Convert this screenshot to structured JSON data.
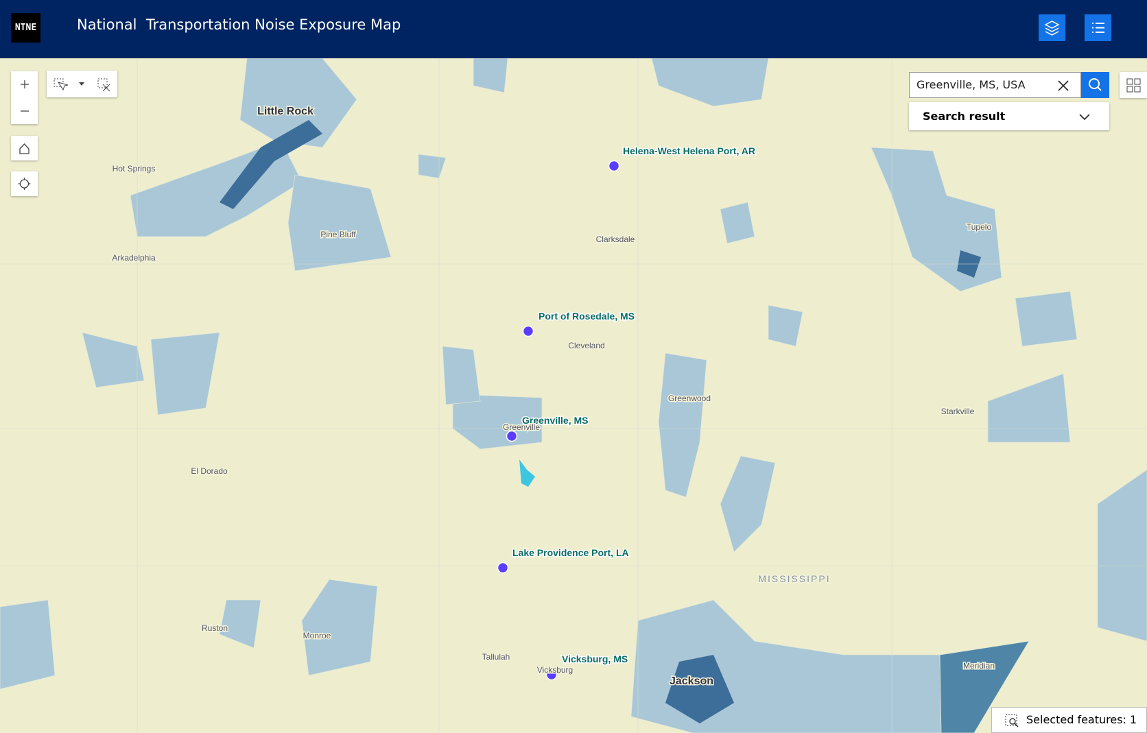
{
  "header": {
    "logo": "NTNE",
    "title": "National  Transportation Noise Exposure Map"
  },
  "search": {
    "query": "Greenville, MS, USA",
    "result_label": "Search result"
  },
  "ports": [
    "Helena-West Helena Port, AR",
    "Port of Rosedale, MS",
    "Greenville, MS",
    "Lake Providence Port, LA",
    "Vicksburg, MS"
  ],
  "places": [
    "Little Rock",
    "Hot Springs",
    "Pine Bluff",
    "Arkadelphia",
    "Clarksdale",
    "Cleveland",
    "Greenwood",
    "Tupelo",
    "Starkville",
    "El Dorado",
    "Ruston",
    "Monroe",
    "Tallulah",
    "Vicksburg",
    "Jackson",
    "Meridian",
    "MISSISSIPPI",
    "Greenville"
  ],
  "status": "Selected features: 1"
}
